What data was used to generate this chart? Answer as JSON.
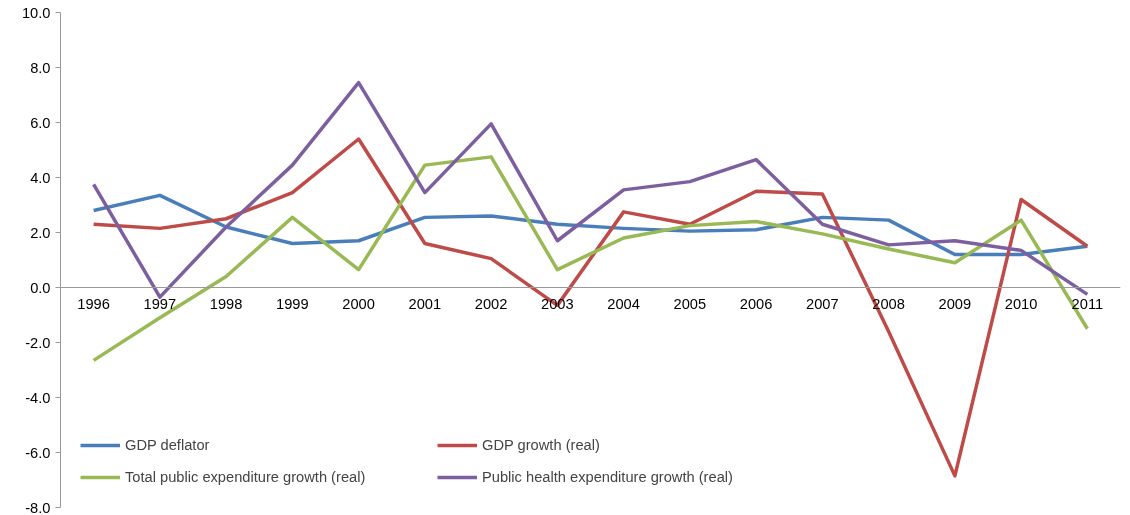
{
  "chart_data": {
    "type": "line",
    "categories": [
      "1996",
      "1997",
      "1998",
      "1999",
      "2000",
      "2001",
      "2002",
      "2003",
      "2004",
      "2005",
      "2006",
      "2007",
      "2008",
      "2009",
      "2010",
      "2011"
    ],
    "series": [
      {
        "name": "GDP deflator",
        "color": "#4a7ebb",
        "values": [
          2.8,
          3.35,
          2.2,
          1.6,
          1.7,
          2.55,
          2.6,
          2.3,
          2.15,
          2.05,
          2.1,
          2.55,
          2.45,
          1.2,
          1.2,
          1.5
        ]
      },
      {
        "name": "GDP growth (real)",
        "color": "#be4b48",
        "values": [
          2.3,
          2.15,
          2.5,
          3.45,
          5.4,
          1.6,
          1.05,
          -0.65,
          2.75,
          2.3,
          3.5,
          3.4,
          -1.6,
          -6.85,
          3.2,
          1.5
        ]
      },
      {
        "name": "Total public expenditure growth (real)",
        "color": "#98b954",
        "values": [
          -2.65,
          -1.1,
          0.4,
          2.55,
          0.65,
          4.45,
          4.75,
          0.65,
          1.8,
          2.25,
          2.4,
          1.95,
          1.4,
          0.9,
          2.45,
          -1.5
        ]
      },
      {
        "name": "Public health expenditure growth (real)",
        "color": "#7d5fa0",
        "values": [
          3.75,
          -0.35,
          2.2,
          4.45,
          7.45,
          3.45,
          5.95,
          1.7,
          3.55,
          3.85,
          4.65,
          2.3,
          1.55,
          1.7,
          1.35,
          -0.25
        ]
      }
    ],
    "ylim": [
      -8,
      10
    ],
    "yticks": [
      {
        "value": -8,
        "label": "-8.0"
      },
      {
        "value": -6,
        "label": "-6.0"
      },
      {
        "value": -4,
        "label": "-4.0"
      },
      {
        "value": -2,
        "label": "-2.0"
      },
      {
        "value": 0,
        "label": "0.0"
      },
      {
        "value": 2,
        "label": "2.0"
      },
      {
        "value": 4,
        "label": "4.0"
      },
      {
        "value": 6,
        "label": "6.0"
      },
      {
        "value": 8,
        "label": "8.0"
      },
      {
        "value": 10,
        "label": "10.0"
      }
    ],
    "legend": "bottom left",
    "grid": false,
    "marker": "none",
    "line_style": "solid"
  }
}
